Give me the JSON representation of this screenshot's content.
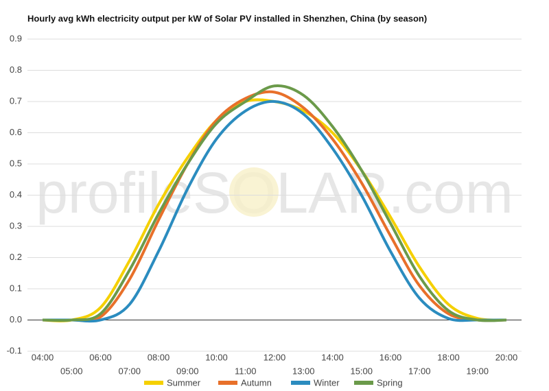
{
  "chart_data": {
    "type": "line",
    "title": "Hourly avg kWh electricity output per kW of Solar PV installed in Shenzhen, China (by season)",
    "watermark": "profileSOLAR.com",
    "categories": [
      "04:00",
      "05:00",
      "06:00",
      "07:00",
      "08:00",
      "09:00",
      "10:00",
      "11:00",
      "12:00",
      "13:00",
      "14:00",
      "15:00",
      "16:00",
      "17:00",
      "18:00",
      "19:00",
      "20:00"
    ],
    "series": [
      {
        "name": "Summer",
        "color": "#f5d000",
        "values": [
          0,
          0,
          0.04,
          0.19,
          0.37,
          0.52,
          0.64,
          0.7,
          0.7,
          0.67,
          0.6,
          0.48,
          0.33,
          0.17,
          0.05,
          0.005,
          0
        ]
      },
      {
        "name": "Autumn",
        "color": "#e8702a",
        "values": [
          0,
          0,
          0.01,
          0.13,
          0.32,
          0.5,
          0.64,
          0.71,
          0.73,
          0.68,
          0.58,
          0.44,
          0.27,
          0.11,
          0.02,
          0,
          0
        ]
      },
      {
        "name": "Winter",
        "color": "#2b8cbf",
        "values": [
          0,
          0,
          0,
          0.05,
          0.22,
          0.42,
          0.58,
          0.67,
          0.7,
          0.66,
          0.55,
          0.4,
          0.22,
          0.07,
          0.005,
          0,
          0
        ]
      },
      {
        "name": "Spring",
        "color": "#6b9a4a",
        "values": [
          0,
          0,
          0.02,
          0.16,
          0.34,
          0.5,
          0.63,
          0.7,
          0.75,
          0.72,
          0.62,
          0.48,
          0.31,
          0.14,
          0.03,
          0,
          0
        ]
      }
    ],
    "ylim": [
      -0.1,
      0.9
    ],
    "yticks": [
      -0.1,
      {
        "value": 0,
        "label": "0.0"
      },
      0.1,
      0.2,
      0.3,
      0.4,
      0.5,
      0.6,
      0.7,
      0.8,
      0.9
    ],
    "grid": true,
    "legend": "bottom"
  }
}
